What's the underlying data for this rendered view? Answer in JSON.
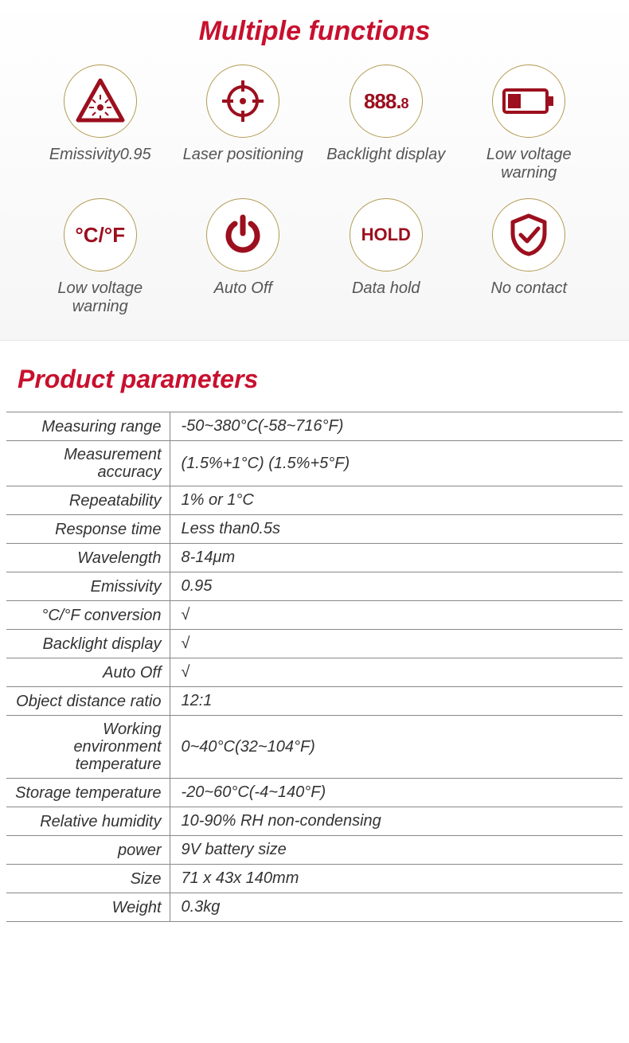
{
  "colors": {
    "accent": "#c8102e",
    "icon": "#9c0f1e",
    "circle_border": "#b29a50",
    "table_border": "#888888",
    "text": "#333333",
    "feature_text": "#555555",
    "bg": "#ffffff"
  },
  "typography": {
    "title_fontsize": 34,
    "subtitle_fontsize": 32,
    "feature_label_fontsize": 20,
    "table_fontsize": 20,
    "font_style": "italic",
    "title_weight": 800
  },
  "titles": {
    "functions": "Multiple functions",
    "parameters": "Product parameters"
  },
  "features": [
    {
      "icon": "laser-warning",
      "label": "Emissivity0.95"
    },
    {
      "icon": "crosshair",
      "label": "Laser positioning"
    },
    {
      "icon": "seven-seg",
      "label": "Backlight display"
    },
    {
      "icon": "battery-low",
      "label": "Low voltage warning"
    },
    {
      "icon": "cf-units",
      "label": "Low voltage warning"
    },
    {
      "icon": "power",
      "label": "Auto Off"
    },
    {
      "icon": "hold",
      "label": "Data hold"
    },
    {
      "icon": "shield-check",
      "label": "No contact"
    }
  ],
  "parameters": [
    {
      "k": "Measuring range",
      "v": "-50~380°C(-58~716°F)"
    },
    {
      "k": "Measurement accuracy",
      "v": "(1.5%+1°C) (1.5%+5°F)"
    },
    {
      "k": "Repeatability",
      "v": "1% or 1°C"
    },
    {
      "k": "Response time",
      "v": "Less than0.5s"
    },
    {
      "k": "Wavelength",
      "v": "8-14μm"
    },
    {
      "k": "Emissivity",
      "v": "0.95"
    },
    {
      "k": "°C/°F conversion",
      "v": "√"
    },
    {
      "k": "Backlight display",
      "v": "√"
    },
    {
      "k": "Auto Off",
      "v": "√"
    },
    {
      "k": "Object distance ratio",
      "v": "12:1"
    },
    {
      "k": "Working environment temperature",
      "v": "0~40°C(32~104°F)"
    },
    {
      "k": "Storage temperature",
      "v": "-20~60°C(-4~140°F)"
    },
    {
      "k": "Relative humidity",
      "v": "10-90% RH non-condensing"
    },
    {
      "k": "power",
      "v": "9V battery size"
    },
    {
      "k": "Size",
      "v": "71 x 43x 140mm"
    },
    {
      "k": "Weight",
      "v": "0.3kg"
    }
  ]
}
